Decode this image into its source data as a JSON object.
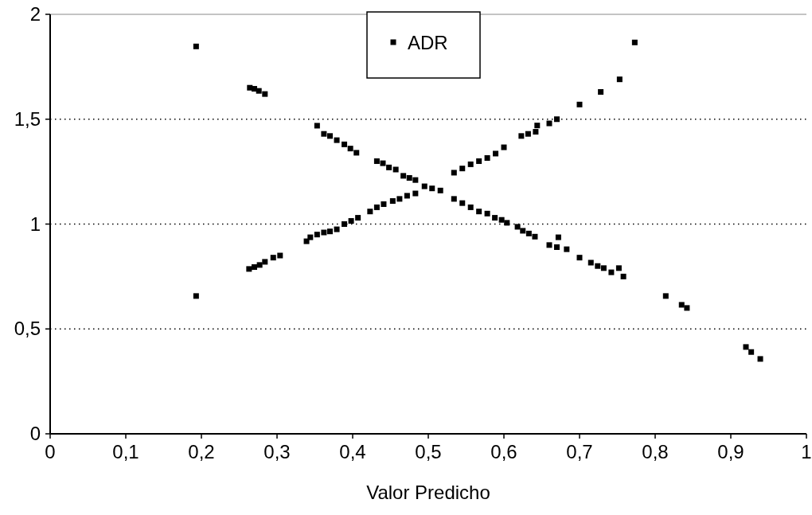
{
  "chart_data": {
    "type": "scatter",
    "xlabel": "Valor Predicho",
    "legend": "top",
    "grid": "y",
    "marker": "square",
    "xlim": [
      0,
      1
    ],
    "ylim": [
      0,
      2
    ],
    "xticks": [
      0,
      {
        "value": 0.1,
        "label": "0,1"
      },
      {
        "value": 0.2,
        "label": "0,2"
      },
      {
        "value": 0.3,
        "label": "0,3"
      },
      {
        "value": 0.4,
        "label": "0,4"
      },
      {
        "value": 0.5,
        "label": "0,5"
      },
      {
        "value": 0.6,
        "label": "0,6"
      },
      {
        "value": 0.7,
        "label": "0,7"
      },
      {
        "value": 0.8,
        "label": "0,8"
      },
      {
        "value": 0.9,
        "label": "0,9"
      },
      1
    ],
    "yticks": [
      0,
      {
        "value": 0.5,
        "label": "0,5"
      },
      1,
      {
        "value": 1.5,
        "label": "1,5"
      },
      2
    ],
    "series": [
      {
        "name": "ADR",
        "color": "#000000",
        "x": [
          0.193,
          0.264,
          0.27,
          0.276,
          0.284,
          0.353,
          0.362,
          0.37,
          0.379,
          0.389,
          0.397,
          0.405,
          0.432,
          0.44,
          0.448,
          0.457,
          0.467,
          0.475,
          0.483,
          0.495,
          0.505,
          0.516,
          0.534,
          0.545,
          0.556,
          0.567,
          0.578,
          0.588,
          0.597,
          0.604,
          0.618,
          0.625,
          0.633,
          0.641,
          0.66,
          0.67,
          0.672,
          0.683,
          0.7,
          0.715,
          0.724,
          0.732,
          0.742,
          0.752,
          0.758,
          0.814,
          0.835,
          0.842,
          0.92,
          0.927,
          0.939,
          0.193,
          0.263,
          0.27,
          0.277,
          0.284,
          0.295,
          0.304,
          0.339,
          0.344,
          0.353,
          0.362,
          0.37,
          0.379,
          0.389,
          0.398,
          0.407,
          0.423,
          0.432,
          0.441,
          0.453,
          0.462,
          0.472,
          0.483,
          0.534,
          0.545,
          0.556,
          0.567,
          0.578,
          0.589,
          0.6,
          0.623,
          0.632,
          0.642,
          0.644,
          0.66,
          0.67,
          0.7,
          0.728,
          0.753,
          0.773
        ],
        "values": [
          1.847,
          1.65,
          1.645,
          1.635,
          1.62,
          1.469,
          1.43,
          1.42,
          1.4,
          1.38,
          1.36,
          1.34,
          1.3,
          1.29,
          1.27,
          1.26,
          1.23,
          1.22,
          1.21,
          1.18,
          1.17,
          1.16,
          1.12,
          1.1,
          1.08,
          1.06,
          1.05,
          1.03,
          1.02,
          1.006,
          0.987,
          0.968,
          0.955,
          0.94,
          0.9,
          0.89,
          0.937,
          0.88,
          0.84,
          0.816,
          0.8,
          0.79,
          0.77,
          0.79,
          0.75,
          0.657,
          0.615,
          0.6,
          0.414,
          0.39,
          0.357,
          0.657,
          0.786,
          0.795,
          0.805,
          0.82,
          0.84,
          0.85,
          0.918,
          0.937,
          0.95,
          0.96,
          0.965,
          0.975,
          1.0,
          1.015,
          1.03,
          1.06,
          1.08,
          1.095,
          1.11,
          1.12,
          1.135,
          1.146,
          1.245,
          1.265,
          1.285,
          1.3,
          1.315,
          1.336,
          1.366,
          1.42,
          1.43,
          1.44,
          1.47,
          1.48,
          1.5,
          1.57,
          1.63,
          1.69,
          1.866
        ]
      }
    ]
  }
}
